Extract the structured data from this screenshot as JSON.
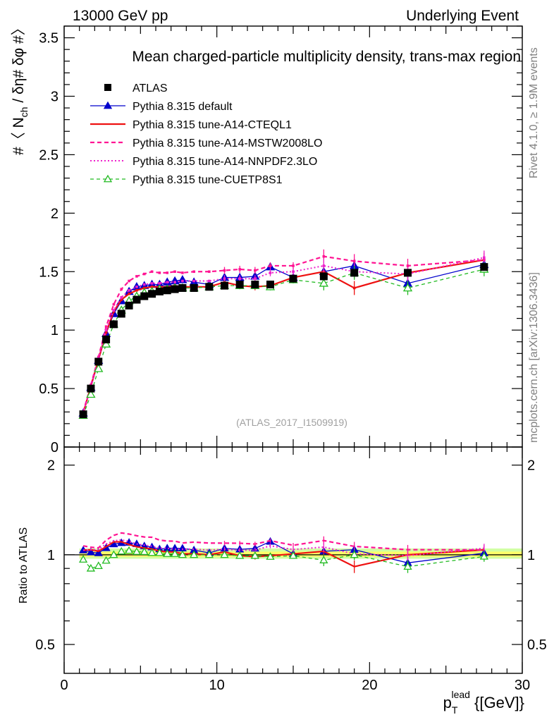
{
  "header": {
    "left": "13000 GeV pp",
    "right": "Underlying Event",
    "plot_title": "Mean charged-particle multiplicity density, trans-max region",
    "watermark": "(ATLAS_2017_I1509919)",
    "side_rivet": "Rivet 4.1.0, ≥ 1.9M events",
    "side_mcplots": "mcplots.cern.ch [arXiv:1306.3436]"
  },
  "axes": {
    "ylabel_main": "#〈 N",
    "ylabel_main_sub": "ch",
    "ylabel_main_tail": " / δη# δφ #〉",
    "ylabel_ratio": "Ratio to ATLAS",
    "xlabel_p": "p",
    "xlabel_sub": "T",
    "xlabel_sup": "lead",
    "xlabel_tail": " {[GeV]}",
    "x_ticks": [
      "0",
      "10",
      "20",
      "30"
    ],
    "y_ticks_main": [
      "0",
      "0.5",
      "1",
      "1.5",
      "2",
      "2.5",
      "3",
      "3.5"
    ],
    "y_ticks_ratio": [
      "0.5",
      "1",
      "2"
    ]
  },
  "colors": {
    "atlas": "#000000",
    "default": "#0000cc",
    "cteql1": "#ee1111",
    "mstw": "#ff1493",
    "nnpdf": "#ee22cc",
    "cuetp": "#22bb22",
    "band_inner": "#ffff66",
    "band_outer": "#ccff99"
  },
  "chart_data": {
    "type": "line",
    "title": "Mean charged-particle multiplicity density, trans-max region",
    "xlabel": "pT lead [GeV]",
    "ylabel": "<N_ch> / dη dφ",
    "xlim": [
      0,
      30
    ],
    "ylim": [
      0,
      3.6
    ],
    "ratio_ylim": [
      0.4,
      2.3
    ],
    "x": [
      1.25,
      1.75,
      2.25,
      2.75,
      3.25,
      3.75,
      4.25,
      4.75,
      5.25,
      5.75,
      6.25,
      6.75,
      7.25,
      7.75,
      8.5,
      9.5,
      10.5,
      11.5,
      12.5,
      13.5,
      15.0,
      17.0,
      19.0,
      22.5,
      27.5
    ],
    "atlas": {
      "name": "ATLAS",
      "values": [
        0.28,
        0.5,
        0.73,
        0.92,
        1.05,
        1.14,
        1.21,
        1.26,
        1.29,
        1.31,
        1.33,
        1.34,
        1.35,
        1.36,
        1.36,
        1.37,
        1.38,
        1.39,
        1.39,
        1.39,
        1.44,
        1.46,
        1.49,
        1.49,
        1.54
      ]
    },
    "series": [
      {
        "name": "Pythia 8.315 default",
        "key": "default",
        "values": [
          0.29,
          0.51,
          0.74,
          0.97,
          1.14,
          1.25,
          1.33,
          1.37,
          1.38,
          1.39,
          1.39,
          1.41,
          1.42,
          1.43,
          1.41,
          1.39,
          1.45,
          1.45,
          1.46,
          1.54,
          1.45,
          1.5,
          1.55,
          1.4,
          1.56
        ]
      },
      {
        "name": "Pythia 8.315 tune-A14-CTEQL1",
        "key": "cteql1",
        "values": [
          0.29,
          0.52,
          0.75,
          0.98,
          1.16,
          1.26,
          1.31,
          1.34,
          1.36,
          1.37,
          1.37,
          1.37,
          1.38,
          1.37,
          1.37,
          1.37,
          1.41,
          1.38,
          1.37,
          1.38,
          1.45,
          1.5,
          1.36,
          1.49,
          1.6
        ]
      },
      {
        "name": "Pythia 8.315 tune-A14-MSTW2008LO",
        "key": "mstw",
        "values": [
          0.3,
          0.53,
          0.77,
          1.03,
          1.22,
          1.35,
          1.42,
          1.46,
          1.48,
          1.5,
          1.49,
          1.49,
          1.5,
          1.49,
          1.5,
          1.5,
          1.51,
          1.52,
          1.51,
          1.55,
          1.55,
          1.63,
          1.59,
          1.55,
          1.6
        ]
      },
      {
        "name": "Pythia 8.315 tune-A14-NNPDF2.3LO",
        "key": "nnpdf",
        "values": [
          0.29,
          0.52,
          0.76,
          1.0,
          1.17,
          1.28,
          1.34,
          1.37,
          1.39,
          1.4,
          1.4,
          1.41,
          1.41,
          1.42,
          1.42,
          1.42,
          1.44,
          1.44,
          1.44,
          1.49,
          1.5,
          1.55,
          1.5,
          1.48,
          1.62
        ]
      },
      {
        "name": "Pythia 8.315 tune-CUETP8S1",
        "key": "cuetp",
        "values": [
          0.27,
          0.45,
          0.67,
          0.88,
          1.05,
          1.17,
          1.25,
          1.29,
          1.32,
          1.33,
          1.35,
          1.35,
          1.36,
          1.36,
          1.36,
          1.37,
          1.38,
          1.38,
          1.38,
          1.37,
          1.43,
          1.4,
          1.49,
          1.36,
          1.52
        ]
      }
    ]
  }
}
